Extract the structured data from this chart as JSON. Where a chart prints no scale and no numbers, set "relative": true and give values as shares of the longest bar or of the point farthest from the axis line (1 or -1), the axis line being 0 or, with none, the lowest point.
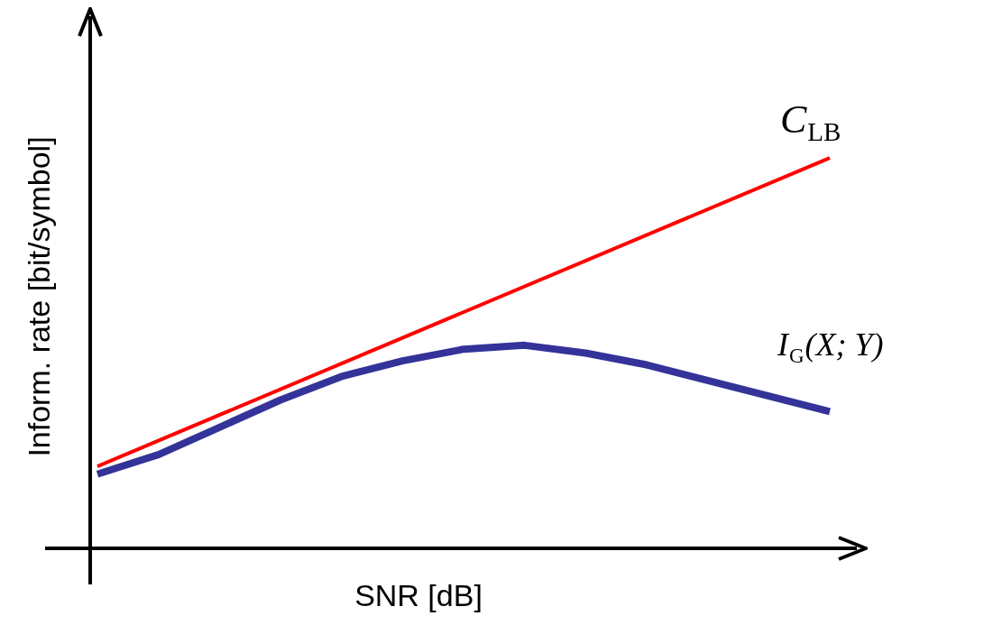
{
  "chart_data": {
    "type": "line",
    "xlabel": "SNR [dB]",
    "ylabel": "Inform. rate [bit/symbol]",
    "relative": true,
    "legend": false,
    "marker": "none",
    "categories": [
      null,
      null,
      null,
      null,
      null,
      null,
      null,
      null,
      null,
      null,
      null,
      null,
      null
    ],
    "series": [
      {
        "name": "C$_{LB}$",
        "color": "#ff0000",
        "values": [
          0.21,
          null,
          null,
          null,
          null,
          null,
          null,
          null,
          null,
          null,
          null,
          null,
          1
        ]
      },
      {
        "name": "I$_{G}$(X; Y)",
        "color": "#333399",
        "values": [
          0.19,
          0.24,
          0.31,
          0.38,
          0.44,
          0.48,
          0.51,
          0.52,
          0.5,
          0.47,
          0.43,
          0.39,
          0.35
        ]
      }
    ]
  }
}
